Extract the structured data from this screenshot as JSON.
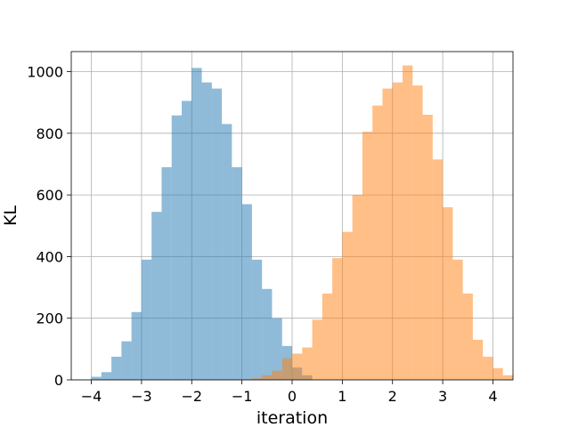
{
  "chart_data": {
    "type": "bar",
    "title": "",
    "xlabel": "iteration",
    "ylabel": "KL",
    "xlim": [
      -4.4,
      4.4
    ],
    "ylim": [
      0,
      1065
    ],
    "grid": true,
    "legend": "none",
    "x_ticks": [
      -4,
      -3,
      -2,
      -1,
      0,
      1,
      2,
      3,
      4
    ],
    "x_tick_labels": [
      "−4",
      "−3",
      "−2",
      "−1",
      "0",
      "1",
      "2",
      "3",
      "4"
    ],
    "y_ticks": [
      0,
      200,
      400,
      600,
      800,
      1000
    ],
    "y_tick_labels": [
      "0",
      "200",
      "400",
      "600",
      "800",
      "1000"
    ],
    "series": [
      {
        "color": "#1f77b4",
        "opacity": 0.5,
        "bin_start": -4.0,
        "bin_width": 0.2,
        "values": [
          10,
          25,
          75,
          125,
          220,
          390,
          545,
          690,
          858,
          905,
          1012,
          965,
          945,
          830,
          690,
          570,
          390,
          295,
          200,
          110,
          40,
          15
        ]
      },
      {
        "color": "#ff7f0e",
        "opacity": 0.5,
        "bin_start": -0.8,
        "bin_width": 0.2,
        "values": [
          5,
          15,
          30,
          70,
          85,
          105,
          195,
          280,
          395,
          480,
          600,
          805,
          890,
          945,
          965,
          1020,
          955,
          860,
          715,
          560,
          390,
          280,
          130,
          75,
          38,
          15
        ]
      }
    ]
  }
}
